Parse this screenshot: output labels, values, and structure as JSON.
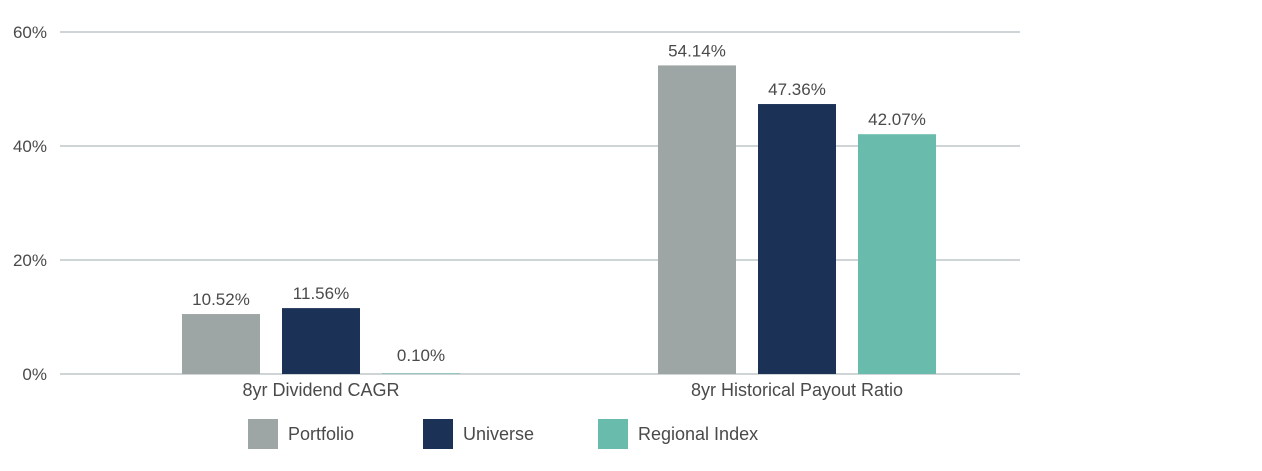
{
  "chart_data": {
    "type": "bar",
    "categories": [
      "8yr Dividend CAGR",
      "8yr Historical Payout Ratio"
    ],
    "series": [
      {
        "name": "Portfolio",
        "color": "#9ea6a5",
        "values": [
          10.52,
          54.14
        ],
        "labels": [
          "10.52%",
          "54.14%"
        ]
      },
      {
        "name": "Universe",
        "color": "#1b3156",
        "values": [
          11.56,
          47.36
        ],
        "labels": [
          "11.56%",
          "47.36%"
        ]
      },
      {
        "name": "Regional Index",
        "color": "#69bcac",
        "values": [
          0.1,
          42.07
        ],
        "labels": [
          "0.10%",
          "42.07%"
        ]
      }
    ],
    "yticks": [
      0,
      20,
      40,
      60
    ],
    "ytick_labels": [
      "0%",
      "20%",
      "40%",
      "60%"
    ],
    "ylim": [
      0,
      60
    ],
    "grid": true,
    "legend": "bottom",
    "colors": {
      "grid": "#cfd4d6",
      "text": "#4a4a4a"
    }
  }
}
